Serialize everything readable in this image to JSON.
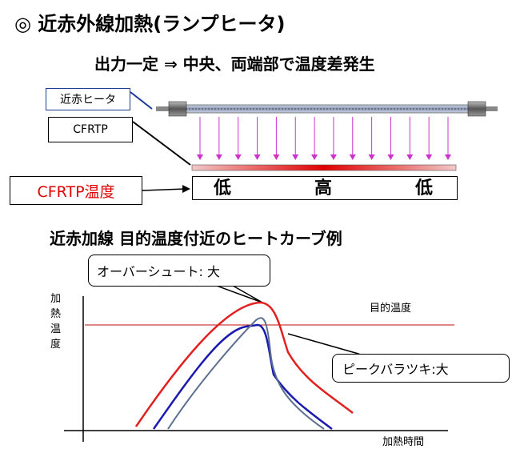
{
  "title": "◎ 近赤外線加熱(ランプヒータ)",
  "subtitle": "出力一定 ⇒ 中央、両端部で温度差発生",
  "labels": {
    "heater": "近赤ヒータ",
    "cfrtp": "CFRTP",
    "temp": "CFRTP温度"
  },
  "temperature_band": {
    "left": "低",
    "center": "高",
    "right": "低"
  },
  "section2_title": "近赤加線 目的温度付近のヒートカーブ例",
  "callouts": {
    "overshoot": "オーバーシュート: 大",
    "peak_variation": "ピークバラツキ:大"
  },
  "chart": {
    "ylabel_chars": [
      "加",
      "熱",
      "温",
      "度"
    ],
    "xlabel": "加熱時間",
    "target_label": "目的温度"
  },
  "colors": {
    "red_curve": "#e32020",
    "blue_curve": "#1a1ab0",
    "gray_curve": "#5c6f8f",
    "arrow": "#cc33cc",
    "target_line": "#c01010"
  }
}
